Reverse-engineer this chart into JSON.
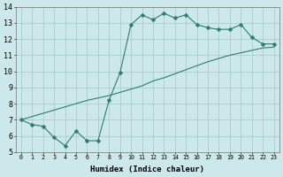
{
  "title": "",
  "xlabel": "Humidex (Indice chaleur)",
  "ylabel": "",
  "xlim": [
    -0.5,
    23.5
  ],
  "ylim": [
    5,
    14
  ],
  "yticks": [
    5,
    6,
    7,
    8,
    9,
    10,
    11,
    12,
    13,
    14
  ],
  "xticks": [
    0,
    1,
    2,
    3,
    4,
    5,
    6,
    7,
    8,
    9,
    10,
    11,
    12,
    13,
    14,
    15,
    16,
    17,
    18,
    19,
    20,
    21,
    22,
    23
  ],
  "line_color": "#2e7d6e",
  "bg_color": "#cce8ea",
  "grid_color": "#aacdd0",
  "curve1_x": [
    0,
    1,
    2,
    3,
    4,
    5,
    6,
    7,
    8,
    9,
    10,
    11,
    12,
    13,
    14,
    15,
    16,
    17,
    18,
    19,
    20,
    21,
    22,
    23
  ],
  "curve1_y": [
    7.0,
    6.7,
    6.6,
    5.9,
    5.4,
    6.3,
    5.7,
    5.7,
    8.2,
    9.9,
    12.9,
    13.5,
    13.2,
    13.6,
    13.3,
    13.5,
    12.9,
    12.7,
    12.6,
    12.6,
    12.9,
    12.1,
    11.7,
    11.7
  ],
  "curve2_x": [
    0,
    1,
    2,
    3,
    4,
    5,
    6,
    7,
    8,
    9,
    10,
    11,
    12,
    13,
    14,
    15,
    16,
    17,
    18,
    19,
    20,
    21,
    22,
    23
  ],
  "curve2_y": [
    7.0,
    7.2,
    7.4,
    7.6,
    7.8,
    8.0,
    8.2,
    8.35,
    8.5,
    8.7,
    8.9,
    9.1,
    9.4,
    9.6,
    9.85,
    10.1,
    10.35,
    10.6,
    10.8,
    11.0,
    11.15,
    11.3,
    11.45,
    11.5
  ],
  "marker_size": 2.5,
  "xlabel_fontsize": 6.5,
  "xtick_fontsize": 4.8,
  "ytick_fontsize": 6.0
}
